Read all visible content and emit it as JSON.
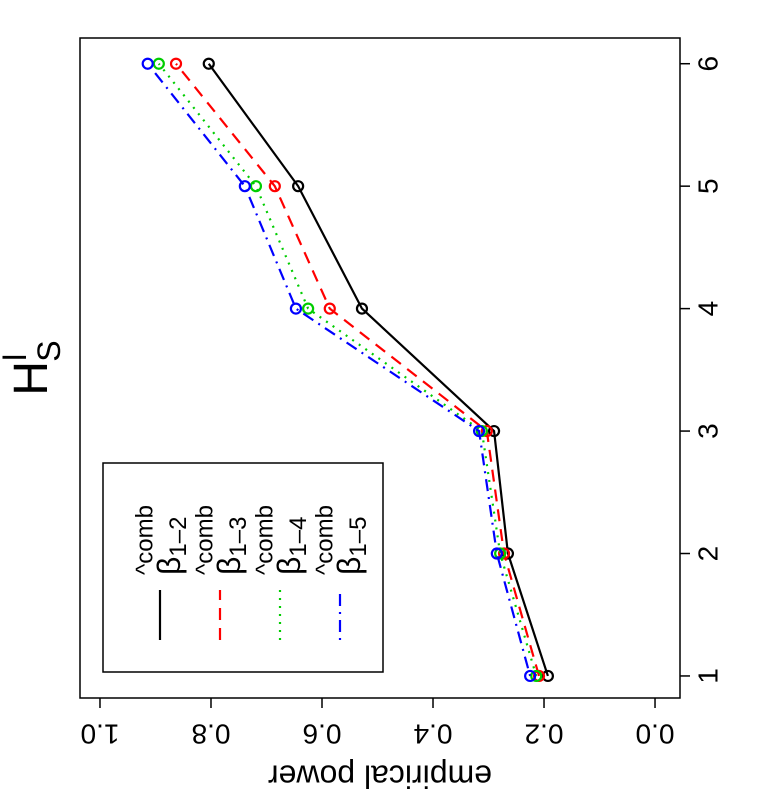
{
  "chart_data": {
    "type": "line",
    "title": "H",
    "title_sub": "S",
    "title_sup": "l",
    "ylabel": "empirical power",
    "x": [
      1,
      2,
      3,
      4,
      5,
      6
    ],
    "series": [
      {
        "name": "β",
        "sub": "1–2",
        "sup": "^comb",
        "color": "#000000",
        "linestyle": "solid",
        "values": [
          0.193,
          0.265,
          0.29,
          0.528,
          0.643,
          0.804
        ]
      },
      {
        "name": "β",
        "sub": "1–3",
        "sup": "^comb",
        "color": "#ff0000",
        "linestyle": "dashed",
        "values": [
          0.209,
          0.272,
          0.303,
          0.586,
          0.685,
          0.863
        ]
      },
      {
        "name": "β",
        "sub": "1–4",
        "sup": "^comb",
        "color": "#00cd00",
        "linestyle": "dotted",
        "values": [
          0.214,
          0.279,
          0.312,
          0.625,
          0.719,
          0.894
        ]
      },
      {
        "name": "β",
        "sub": "1–5",
        "sup": "^comb",
        "color": "#0000ff",
        "linestyle": "dotdash",
        "values": [
          0.225,
          0.285,
          0.317,
          0.647,
          0.739,
          0.914
        ]
      }
    ],
    "xlim": [
      0.82,
      6.21
    ],
    "xticks": [
      1,
      2,
      3,
      4,
      5,
      6
    ],
    "ylim": [
      -0.045,
      1.036
    ],
    "yticks": [
      {
        "value": 0,
        "label": "0.0"
      },
      0.2,
      0.4,
      0.6,
      0.8,
      {
        "value": 1,
        "label": "1.0"
      }
    ],
    "legend": "top-left"
  }
}
